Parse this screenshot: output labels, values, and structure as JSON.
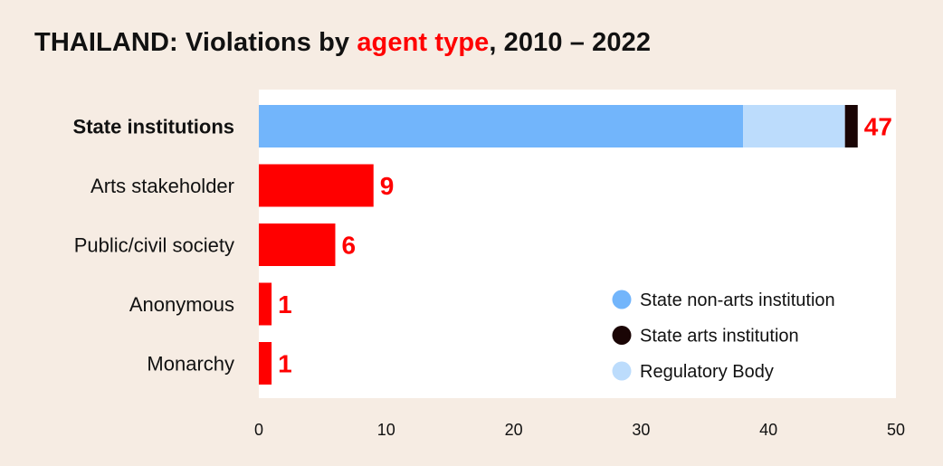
{
  "title": {
    "prefix": "THAILAND: Violations by ",
    "highlight": "agent type",
    "suffix": ", 2010 – 2022"
  },
  "colors": {
    "background": "#f6ece3",
    "plot": "#ffffff",
    "accent": "#ff0000",
    "state_non_arts": "#72b5fb",
    "state_arts": "#1a0505",
    "regulatory": "#bcdcfc"
  },
  "chart_data": {
    "type": "bar",
    "orientation": "horizontal",
    "stacked": true,
    "categories": [
      "State institutions",
      "Arts stakeholder",
      "Public/civil society",
      "Anonymous",
      "Monarchy"
    ],
    "bold_categories": [
      "State institutions"
    ],
    "totals": [
      47,
      9,
      6,
      1,
      1
    ],
    "series": [
      {
        "name": "",
        "color": "#ff0000",
        "values": [
          0,
          9,
          6,
          1,
          1
        ]
      },
      {
        "name": "State non-arts institution",
        "color": "#72b5fb",
        "values": [
          38,
          0,
          0,
          0,
          0
        ]
      },
      {
        "name": "Regulatory Body",
        "color": "#bcdcfc",
        "values": [
          8,
          0,
          0,
          0,
          0
        ]
      },
      {
        "name": "State arts institution",
        "color": "#1a0505",
        "values": [
          1,
          0,
          0,
          0,
          0
        ]
      }
    ],
    "legend": [
      {
        "name": "State non-arts institution",
        "color": "#72b5fb"
      },
      {
        "name": "State arts institution",
        "color": "#1a0505"
      },
      {
        "name": "Regulatory Body",
        "color": "#bcdcfc"
      }
    ],
    "legend_position": "bottom-right",
    "xlim": [
      0,
      50
    ],
    "xticks": [
      0,
      10,
      20,
      30,
      40,
      50
    ],
    "grid": false,
    "xlabel": "",
    "ylabel": ""
  }
}
